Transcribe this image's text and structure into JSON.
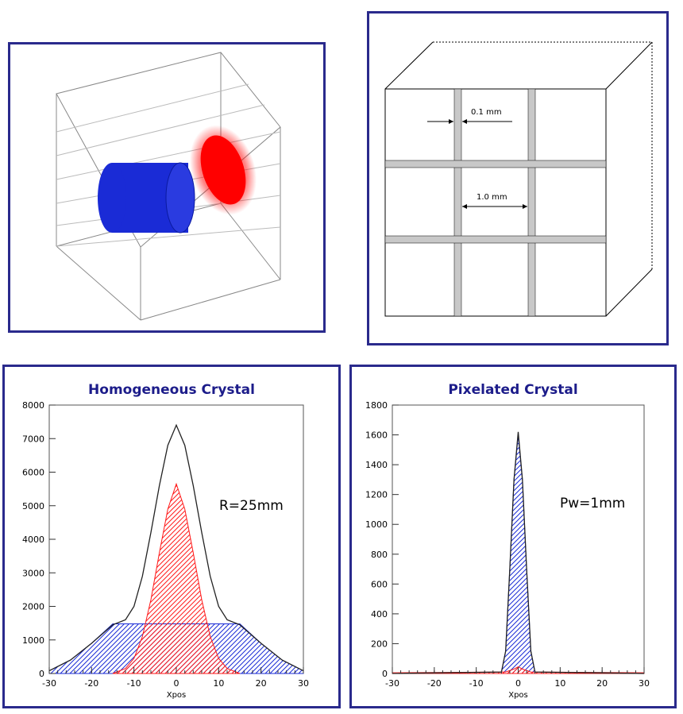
{
  "diagram": {
    "gap_label": "0.1 mm",
    "pixel_label": "1.0 mm"
  },
  "colors": {
    "panel_border": "#2a2a8c",
    "title": "#1c1c8a",
    "blue_fill": "#1a2bd6",
    "red_fill": "#ff1a1a",
    "septa": "#c8c8c8"
  },
  "chart_data": [
    {
      "type": "line",
      "title": "Homogeneous Crystal",
      "xlabel": "Xpos",
      "ylabel": "",
      "annotation": "R=25mm",
      "xlim": [
        -30,
        30
      ],
      "ylim": [
        0,
        8000
      ],
      "xticks": [
        -30,
        -20,
        -10,
        0,
        10,
        20,
        30
      ],
      "yticks": [
        0,
        1000,
        2000,
        3000,
        4000,
        5000,
        6000,
        7000,
        8000
      ],
      "series": [
        {
          "style": "black-line",
          "x": [
            -30,
            -25,
            -20,
            -15,
            -12,
            -10,
            -8,
            -6,
            -4,
            -2,
            0,
            2,
            4,
            6,
            8,
            10,
            12,
            15,
            20,
            25,
            30
          ],
          "y": [
            80,
            400,
            900,
            1450,
            1600,
            2000,
            2900,
            4200,
            5600,
            6800,
            7400,
            6800,
            5600,
            4200,
            2900,
            2000,
            1600,
            1450,
            900,
            400,
            80
          ]
        },
        {
          "style": "blue-hatched",
          "x": [
            -30,
            -25,
            -20,
            -15,
            15,
            20,
            25,
            30
          ],
          "y": [
            80,
            400,
            900,
            1480,
            1480,
            900,
            400,
            80
          ]
        },
        {
          "style": "red-hatched",
          "x": [
            -15,
            -12,
            -10,
            -8,
            -6,
            -4,
            -2,
            0,
            2,
            4,
            6,
            8,
            10,
            12,
            15
          ],
          "y": [
            0,
            150,
            450,
            1100,
            2200,
            3600,
            4900,
            5650,
            4900,
            3600,
            2200,
            1100,
            450,
            150,
            0
          ]
        }
      ]
    },
    {
      "type": "line",
      "title": "Pixelated Crystal",
      "xlabel": "Xpos",
      "ylabel": "",
      "annotation": "Pw=1mm",
      "xlim": [
        -30,
        30
      ],
      "ylim": [
        0,
        1800
      ],
      "xticks": [
        -30,
        -20,
        -10,
        0,
        10,
        20,
        30
      ],
      "yticks": [
        0,
        200,
        400,
        600,
        800,
        1000,
        1200,
        1400,
        1600,
        1800
      ],
      "series": [
        {
          "style": "black-line",
          "x": [
            -30,
            -4,
            -3,
            -2,
            -1,
            0,
            1,
            2,
            3,
            4,
            30
          ],
          "y": [
            0,
            10,
            150,
            700,
            1300,
            1620,
            1300,
            700,
            150,
            10,
            0
          ]
        },
        {
          "style": "blue-hatched",
          "x": [
            -4,
            -3,
            -2,
            -1,
            0,
            1,
            2,
            3,
            4
          ],
          "y": [
            10,
            150,
            700,
            1300,
            1600,
            1300,
            700,
            150,
            10
          ]
        },
        {
          "style": "red-hatched",
          "x": [
            -30,
            -3,
            -1,
            0,
            1,
            3,
            30
          ],
          "y": [
            5,
            10,
            30,
            45,
            30,
            10,
            5
          ]
        }
      ]
    }
  ]
}
